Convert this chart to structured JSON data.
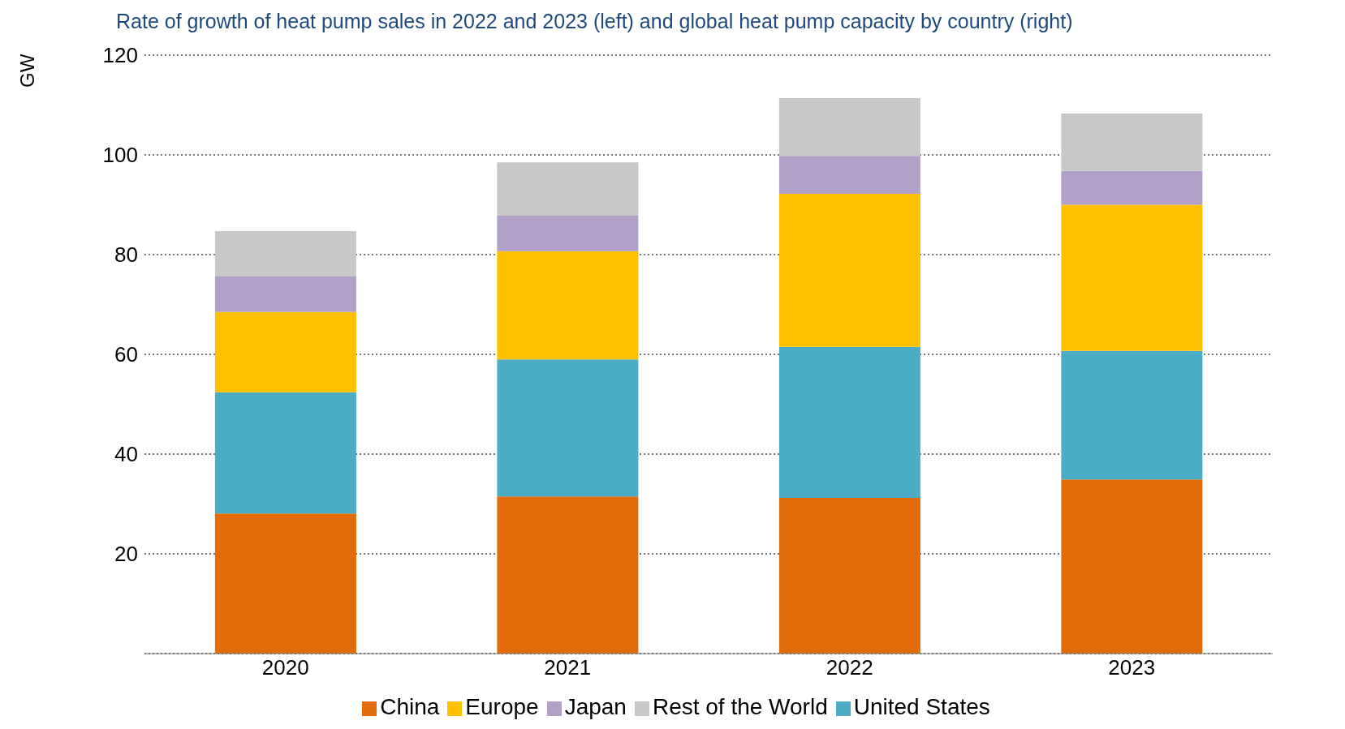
{
  "chart_data": {
    "type": "bar",
    "title": "Rate of growth of heat pump sales in 2022 and 2023 (left) and global heat pump capacity by country (right)",
    "ylabel": "GW",
    "categories": [
      "2020",
      "2021",
      "2022",
      "2023"
    ],
    "stacked": true,
    "series": [
      {
        "name": "China",
        "color": "#e36c0a",
        "values": [
          28.1,
          31.5,
          31.2,
          34.9
        ]
      },
      {
        "name": "United States",
        "color": "#4bacc6",
        "values": [
          24.3,
          27.5,
          30.3,
          25.8
        ]
      },
      {
        "name": "Europe",
        "color": "#ffc000",
        "values": [
          16.1,
          21.7,
          30.7,
          29.3
        ]
      },
      {
        "name": "Japan",
        "color": "#b1a0c7",
        "values": [
          7.1,
          7.1,
          7.6,
          6.8
        ]
      },
      {
        "name": "Rest of the World",
        "color": "#c8c8c8",
        "values": [
          9.1,
          10.7,
          11.6,
          11.5
        ]
      }
    ],
    "ylim": [
      0,
      120
    ],
    "yticks": [
      {
        "value": 0,
        "label": null
      },
      20,
      40,
      60,
      80,
      100,
      120
    ],
    "grid": "y",
    "legend": "bottom"
  }
}
